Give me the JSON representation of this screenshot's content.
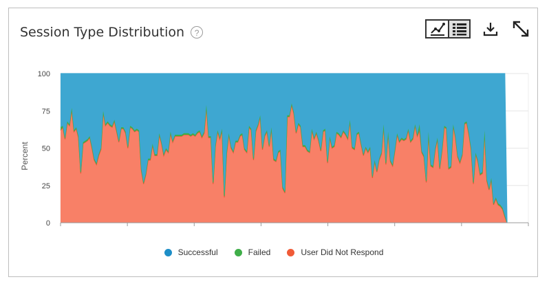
{
  "header": {
    "title": "Session Type Distribution",
    "help_glyph": "?"
  },
  "toolbar": {
    "icons": [
      "line-chart-icon",
      "list-icon",
      "download-icon",
      "expand-icon"
    ]
  },
  "colors": {
    "successful": "#3ea7d1",
    "failed": "#3fae49",
    "no_response": "#f88067",
    "no_response_line": "#e8553a",
    "legend_successful": "#1d8ec7",
    "legend_failed": "#3fae49",
    "legend_no_response": "#f05b37"
  },
  "chart_data": {
    "type": "area",
    "stacked": true,
    "ylabel": "Percent",
    "xlabel": "",
    "ylim": [
      0,
      100
    ],
    "yticks": [
      0,
      25,
      50,
      75,
      100
    ],
    "grid": true,
    "legend_position": "bottom",
    "x": [
      0,
      1,
      2,
      3,
      4,
      5,
      6,
      7,
      8,
      9,
      10,
      11,
      12,
      13,
      14,
      15,
      16,
      17,
      18,
      19,
      20,
      21,
      22,
      23,
      24,
      25,
      26,
      27,
      28,
      29,
      30,
      31,
      32,
      33,
      34,
      35,
      36,
      37,
      38,
      39,
      40,
      41,
      42,
      43,
      44,
      45,
      46,
      47,
      48,
      49,
      50,
      51,
      52,
      53,
      54,
      55,
      56,
      57,
      58,
      59,
      60,
      61,
      62,
      63,
      64,
      65,
      66,
      67,
      68,
      69,
      70,
      71,
      72,
      73,
      74,
      75,
      76,
      77,
      78,
      79,
      80,
      81,
      82,
      83,
      84,
      85,
      86,
      87,
      88,
      89,
      90,
      91,
      92,
      93,
      94,
      95,
      96,
      97,
      98,
      99,
      100,
      101,
      102,
      103,
      104,
      105,
      106,
      107,
      108,
      109,
      110,
      111,
      112,
      113,
      114,
      115,
      116,
      117,
      118,
      119,
      120,
      121,
      122,
      123,
      124,
      125,
      126,
      127,
      128,
      129,
      130,
      131,
      132,
      133,
      134,
      135,
      136,
      137,
      138,
      139,
      140,
      141,
      142,
      143,
      144,
      145,
      146,
      147,
      148,
      149,
      150,
      151,
      152,
      153,
      154,
      155,
      156,
      157,
      158,
      159,
      160,
      161,
      162,
      163,
      164,
      165,
      166,
      167,
      168,
      169,
      170,
      171,
      172,
      173,
      174,
      175,
      176,
      177,
      178,
      179,
      180,
      181,
      182,
      183,
      184,
      185,
      186,
      187,
      188,
      189,
      190,
      191,
      192,
      193,
      194,
      195,
      196,
      197,
      198,
      199
    ],
    "series": [
      {
        "name": "Successful",
        "values": [
          36,
          35,
          43,
          32,
          34,
          23,
          38,
          36,
          42,
          66,
          46,
          45,
          44,
          42,
          49,
          57,
          60,
          54,
          50,
          25,
          34,
          32,
          34,
          35,
          31,
          38,
          45,
          36,
          36,
          39,
          49,
          35,
          36,
          38,
          37,
          38,
          64,
          73,
          67,
          57,
          57,
          47,
          54,
          54,
          40,
          46,
          54,
          50,
          52,
          39,
          45,
          41,
          41,
          41,
          41,
          40,
          40,
          40,
          41,
          40,
          41,
          39,
          38,
          42,
          39,
          21,
          42,
          42,
          73,
          48,
          38,
          43,
          37,
          82,
          53,
          40,
          49,
          52,
          45,
          45,
          41,
          40,
          50,
          52,
          35,
          37,
          57,
          38,
          34,
          28,
          50,
          41,
          38,
          48,
          36,
          57,
          58,
          52,
          51,
          76,
          79,
          28,
          28,
          20,
          26,
          39,
          33,
          35,
          48,
          48,
          51,
          52,
          37,
          43,
          39,
          44,
          51,
          38,
          37,
          59,
          42,
          49,
          48,
          39,
          40,
          42,
          38,
          40,
          43,
          31,
          49,
          50,
          40,
          39,
          47,
          54,
          49,
          52,
          49,
          69,
          58,
          65,
          57,
          53,
          34,
          60,
          39,
          58,
          61,
          51,
          40,
          45,
          43,
          44,
          43,
          37,
          45,
          43,
          34,
          41,
          34,
          52,
          55,
          72,
          39,
          61,
          62,
          50,
          43,
          63,
          51,
          35,
          36,
          63,
          62,
          34,
          42,
          55,
          59,
          54,
          33,
          32,
          40,
          50,
          73,
          53,
          58,
          67,
          66,
          38,
          71,
          77,
          70,
          87,
          83,
          87,
          88,
          90,
          95,
          0
        ],
        "color": "#3ea7d1"
      },
      {
        "name": "Failed",
        "values": [
          2,
          1,
          1,
          1,
          1,
          1,
          1,
          1,
          1,
          1,
          1,
          1,
          1,
          1,
          1,
          1,
          1,
          1,
          1,
          1,
          1,
          1,
          1,
          1,
          1,
          1,
          1,
          1,
          1,
          1,
          1,
          1,
          1,
          1,
          1,
          1,
          1,
          1,
          1,
          1,
          1,
          1,
          1,
          1,
          1,
          1,
          1,
          1,
          1,
          1,
          1,
          1,
          1,
          1,
          1,
          1,
          1,
          1,
          1,
          1,
          1,
          1,
          1,
          1,
          1,
          1,
          1,
          1,
          1,
          1,
          1,
          1,
          1,
          1,
          1,
          1,
          1,
          1,
          1,
          1,
          1,
          1,
          1,
          1,
          1,
          1,
          1,
          1,
          1,
          1,
          1,
          1,
          1,
          1,
          1,
          1,
          1,
          1,
          1,
          1,
          1,
          1,
          1,
          1,
          1,
          1,
          1,
          1,
          1,
          1,
          1,
          1,
          1,
          1,
          1,
          1,
          1,
          1,
          1,
          1,
          1,
          1,
          1,
          1,
          1,
          1,
          1,
          1,
          1,
          1,
          1,
          1,
          1,
          1,
          1,
          1,
          1,
          1,
          1,
          1,
          1,
          1,
          1,
          1,
          1,
          1,
          1,
          1,
          1,
          1,
          1,
          1,
          1,
          1,
          1,
          1,
          1,
          1,
          1,
          1,
          4,
          1,
          1,
          1,
          1,
          1,
          1,
          1,
          1,
          1,
          1,
          1,
          1,
          1,
          1,
          1,
          1,
          1,
          1,
          1,
          1,
          1,
          1,
          1,
          1,
          1,
          1,
          1,
          1,
          1,
          1,
          1,
          1,
          1,
          1,
          1,
          1,
          1,
          1,
          0
        ],
        "color": "#3fae49"
      },
      {
        "name": "User Did Not Respond",
        "values": [
          62,
          64,
          56,
          67,
          65,
          76,
          61,
          63,
          57,
          33,
          53,
          54,
          55,
          57,
          50,
          42,
          39,
          45,
          49,
          74,
          65,
          67,
          65,
          64,
          68,
          61,
          54,
          63,
          63,
          60,
          50,
          64,
          63,
          61,
          62,
          61,
          35,
          26,
          32,
          42,
          42,
          52,
          45,
          45,
          59,
          53,
          45,
          49,
          47,
          60,
          54,
          58,
          58,
          58,
          58,
          59,
          59,
          59,
          58,
          59,
          58,
          60,
          61,
          57,
          60,
          78,
          57,
          57,
          26,
          51,
          61,
          56,
          62,
          17,
          46,
          59,
          50,
          47,
          54,
          54,
          58,
          59,
          49,
          47,
          64,
          62,
          42,
          61,
          65,
          71,
          49,
          58,
          61,
          51,
          63,
          42,
          41,
          47,
          48,
          23,
          20,
          71,
          71,
          79,
          73,
          60,
          66,
          64,
          51,
          51,
          48,
          47,
          62,
          56,
          60,
          55,
          48,
          61,
          62,
          40,
          57,
          50,
          51,
          60,
          59,
          57,
          61,
          59,
          56,
          68,
          50,
          49,
          59,
          60,
          52,
          45,
          50,
          47,
          50,
          30,
          41,
          34,
          42,
          46,
          65,
          39,
          60,
          41,
          38,
          48,
          59,
          54,
          56,
          55,
          56,
          62,
          54,
          56,
          65,
          58,
          62,
          47,
          44,
          27,
          60,
          38,
          37,
          49,
          56,
          36,
          48,
          64,
          63,
          36,
          37,
          65,
          57,
          44,
          40,
          45,
          66,
          67,
          59,
          49,
          26,
          46,
          41,
          32,
          33,
          61,
          28,
          22,
          29,
          12,
          16,
          12,
          11,
          9,
          4,
          0
        ],
        "color": "#f88067"
      }
    ]
  },
  "legend": {
    "items": [
      {
        "label": "Successful",
        "color": "#1d8ec7"
      },
      {
        "label": "Failed",
        "color": "#3fae49"
      },
      {
        "label": "User Did Not Respond",
        "color": "#f05b37"
      }
    ]
  }
}
